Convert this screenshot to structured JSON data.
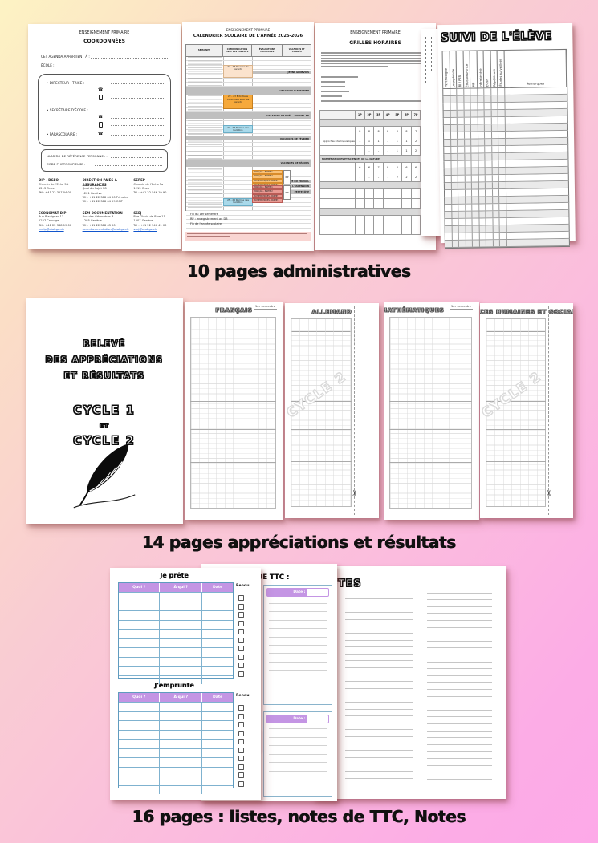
{
  "captions": {
    "admin": "10 pages administratives",
    "appreciations": "14 pages appréciations et résultats",
    "listes": "16 pages : listes, notes de TTC, Notes"
  },
  "coordonnees": {
    "header": "ENSEIGNEMENT PRIMAIRE",
    "title": "COORDONNÉES",
    "owner_label": "CET AGENDA APPARTIENT À :",
    "school_label": "ÉCOLE :",
    "contact_entries": [
      {
        "label": "DIRECTEUR - TRICE :",
        "phone": true,
        "mobile": true
      },
      {
        "label": "SECRÉTAIRE D'ÉCOLE :",
        "phone": true,
        "mobile": true
      },
      {
        "label": "PARASCOLAIRE :",
        "phone": true,
        "mobile": false
      }
    ],
    "ref_labels": [
      "NUMÉRO DE RÉFÉRENCE PERSONNEL :",
      "CODE PHOTOCOPIEUSE :"
    ],
    "directory": [
      {
        "name": "DIP - DGEO",
        "lines": [
          "Chemin de l'Echo 5A",
          "1213 Onex",
          "Tél : +41 22 327 04 00"
        ],
        "email": ""
      },
      {
        "name": "DIRECTION PAIES & ASSURANCES",
        "lines": [
          "Quai du Sujet 28",
          "1201 Genève",
          "Tél : +41 22 388 04 00 Primaire",
          "Tél : +41 22 388 04 59 OMP"
        ],
        "email": ""
      },
      {
        "name": "SEREP",
        "lines": [
          "Chemin de l'Echo 5a",
          "1213 Onex",
          "Tél : +41 22 546 19 90"
        ],
        "email": ""
      },
      {
        "name": "ECONOMAT DIP",
        "lines": [
          "Rue Blavignac 13",
          "1227 Carouge",
          "Tél : +41 22 388 19 00"
        ],
        "email": "ecdip@etat.ge.ch"
      },
      {
        "name": "SEM DOCUMENTATION",
        "lines": [
          "Rue des Géomètres 3",
          "1205 Genève",
          "Tél : +41 22 388 63 00"
        ],
        "email": "sem.documentation@etat.ge.ch"
      },
      {
        "name": "SSEJ",
        "lines": [
          "Rue Glacis-de-Rive 11",
          "1207 Genève",
          "Tél : +41 22 546 41 00"
        ],
        "email": "ssej@etat.ge.ch"
      }
    ]
  },
  "calendrier": {
    "header": "ENSEIGNEMENT PRIMAIRE",
    "title": "CALENDRIER SCOLAIRE DE L'ANNÉE 2025-2026",
    "columns": [
      "SEMAINES",
      "COMMUNICATION AVEC LES PARENTS",
      "ÉVALUATIONS COMMUNES",
      "VACANCES ET CONGÉS"
    ],
    "week_rows": 44,
    "events": [
      {
        "row": 2.2,
        "span": 3.2,
        "color": "#fbe3cd",
        "border": "#d9b38a",
        "label": "22 - 23 Réunion de parents"
      },
      {
        "row": 10.8,
        "span": 3.6,
        "color": "#f6a93b",
        "border": "#c77f1e",
        "label": "22 - 23 Entretiens individuels avec les parents"
      },
      {
        "row": 19.6,
        "span": 1.7,
        "color": "#a9d9ea",
        "border": "#6aaec7",
        "label": "22 - 23 Remise des bulletins"
      },
      {
        "row": 40.4,
        "span": 1.7,
        "color": "#a9d9ea",
        "border": "#6aaec7",
        "label": "25 - 26 Remise des bulletins"
      }
    ],
    "holiday_bands": [
      {
        "row": 3.8,
        "span": 1,
        "full": false,
        "label": "JEÛNE GENEVOIS"
      },
      {
        "row": 8.7,
        "span": 2,
        "full": true,
        "label": "VACANCES D'AUTOMNE"
      },
      {
        "row": 15.8,
        "span": 2,
        "full": true,
        "label": "VACANCES DE NOËL - NOUVEL AN"
      },
      {
        "row": 22.8,
        "span": 1.2,
        "full": true,
        "label": "VACANCES DE FÉVRIER"
      },
      {
        "row": 29.4,
        "span": 2,
        "full": true,
        "label": "VACANCES DE PÂQUES"
      },
      {
        "row": 35.2,
        "span": 1,
        "full": false,
        "label": "FÊTE DU TRAVAIL"
      },
      {
        "row": 36.6,
        "span": 1,
        "full": false,
        "label": "PONT DE L'ASCENSION"
      },
      {
        "row": 38.2,
        "span": 1,
        "full": false,
        "label": "PENTECÔTE"
      }
    ],
    "eval_groups": [
      {
        "row": 32.4,
        "color": "#f9c279",
        "border": "#d98c2b",
        "note": "RP",
        "items": [
          "FRANÇAIS - PARTIE 1",
          "FRANÇAIS - PARTIE 2",
          "MATHÉMATIQUES - PARTIE 1",
          "MATHÉMATIQUES - PARTIE 2"
        ]
      },
      {
        "row": 36.8,
        "color": "#e99a93",
        "border": "#b95b55",
        "note": "RP",
        "items": [
          "FRANÇAIS - PARTIE 1",
          "FRANÇAIS - PARTIE 2",
          "MATHÉMATIQUES - PARTIE 1",
          "MATHÉMATIQUES - PARTIE 2"
        ]
      }
    ],
    "legend": [
      "Fin du 1er semestre",
      "RP : enregistrement au DB",
      "Fin de l'année scolaire"
    ]
  },
  "grilles": {
    "header": "ENSEIGNEMENT PRIMAIRE",
    "title": "GRILLES HORAIRES",
    "col_headers": [
      "1P",
      "2P",
      "3P",
      "4P",
      "5P",
      "6P",
      "7P",
      "8P"
    ],
    "sections": [
      {
        "band": "",
        "rows": [
          {
            "label": "",
            "vals": [
              "8",
              "8",
              "8",
              "8",
              "8",
              "8",
              "7",
              "7"
            ]
          },
          {
            "label": "Approches interlinguistiques",
            "vals": [
              "1",
              "1",
              "1",
              "1",
              "1",
              "1",
              "2",
              "2"
            ]
          },
          {
            "label": "",
            "vals": [
              "-",
              "-",
              "-",
              "-",
              "1",
              "1",
              "2",
              "2"
            ]
          }
        ]
      },
      {
        "band": "MATHÉMATIQUES ET SCIENCES DE LA NATURE",
        "rows": [
          {
            "label": "",
            "vals": [
              "6",
              "6",
              "7",
              "8",
              "6",
              "6",
              "6",
              "6"
            ]
          },
          {
            "label": "",
            "vals": [
              "-",
              "-",
              "-",
              "-",
              "2",
              "2",
              "2",
              "2"
            ]
          }
        ]
      },
      {
        "band": "",
        "rows": [
          {
            "label": "",
            "vals": [
              "",
              "",
              "",
              "",
              "",
              "",
              "",
              ""
            ]
          },
          {
            "label": "",
            "vals": [
              "",
              "",
              "",
              "",
              "",
              "",
              "",
              ""
            ]
          }
        ]
      },
      {
        "band": "",
        "rows": [
          {
            "label": "",
            "vals": [
              "",
              "",
              "",
              "",
              "",
              "",
              "",
              ""
            ]
          },
          {
            "label": "",
            "vals": [
              "",
              "",
              "",
              "",
              "",
              "",
              "",
              ""
            ]
          }
        ]
      }
    ]
  },
  "suivi": {
    "title": "SUIVI DE L'ÉLÈVE",
    "col_headers": [
      "Psychologue",
      "Logopédiste",
      "RI / PES",
      "Éducateur-trice",
      "MB",
      "Infirmier-ère",
      "ECSP",
      "Répétiteurs",
      "Études surveillées"
    ],
    "remarks_header": "Remarques",
    "body_rows": 22
  },
  "appreciations": {
    "cover_lines": [
      "RELEVÉ",
      "DES APPRÉCIATIONS",
      "ET RÉSULTATS"
    ],
    "cycle1": "CYCLE 1",
    "et": "ET",
    "cycle2": "CYCLE 2",
    "semester_note": "1er semestre",
    "watermark": "CYCLE 2",
    "subjects": [
      "FRANÇAIS",
      "ALLEMAND",
      "MATHÉMATIQUES",
      "SCIENCES HUMAINES ET SOCIALES"
    ]
  },
  "listes": {
    "preter_title": "Je prête",
    "emprunter_title": "J'emprunte",
    "table_headers": [
      "Quoi ?",
      "À qui ?",
      "Date"
    ],
    "rendu_label": "Rendu",
    "rows": 10,
    "ttc_title": "NOTES DE TTC :",
    "ttc_date_label": "Date :",
    "notes_title": "NOTES"
  },
  "colors": {
    "purple_header": "#c495e4",
    "table_blue": "#5f9bbf",
    "band_gray": "#bfbfbf",
    "calendar_orange": "#f6a93b",
    "calendar_blue": "#a9d9ea",
    "calendar_peach": "#fbe3cd",
    "eval_orange": "#f9c279",
    "eval_red": "#e99a93"
  }
}
